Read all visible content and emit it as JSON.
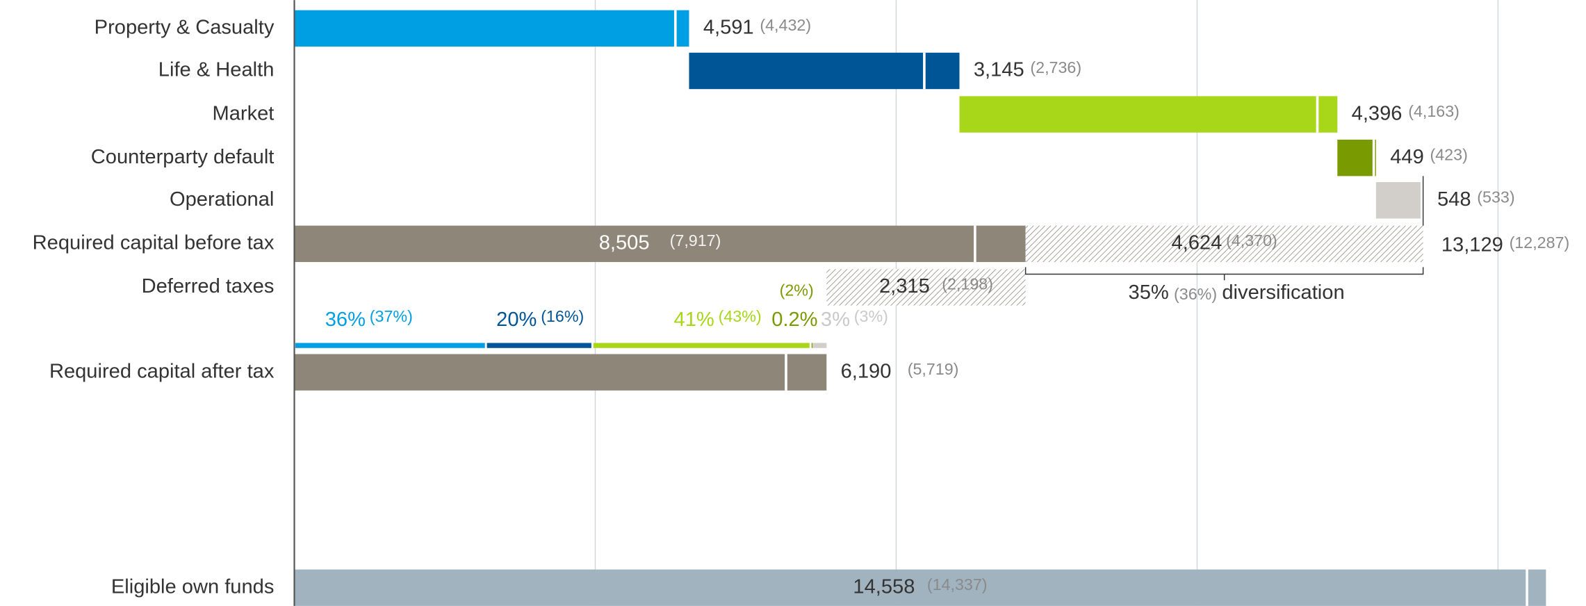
{
  "chart_data": {
    "type": "waterfall",
    "categories": [
      "Property & Casualty",
      "Life & Health",
      "Market",
      "Counterparty default",
      "Operational",
      "Required capital before tax",
      "Deferred taxes",
      "Required capital after tax",
      "Eligible own funds"
    ],
    "values": [
      4591,
      3145,
      4396,
      449,
      548,
      8505,
      2315,
      6190,
      14558
    ],
    "value_labels": [
      "4,591",
      "3,145",
      "4,396",
      "449",
      "548",
      "8,505",
      "2,315",
      "6,190",
      "14,558"
    ],
    "prior_values": [
      4432,
      2736,
      4163,
      423,
      533,
      7917,
      2198,
      5719,
      14337
    ],
    "prior_labels": [
      "(4,432)",
      "(2,736)",
      "(4,163)",
      "(423)",
      "(533)",
      "(7,917)",
      "(2,198)",
      "(5,719)",
      "(14,337)"
    ],
    "colors": [
      "#009fe3",
      "#005596",
      "#a8d619",
      "#7a9a01",
      "#d2cfcb",
      "#8f867a",
      "#8f867a",
      "#8f867a",
      "#a0b3bf"
    ],
    "diversification": {
      "value": 4624,
      "value_label": "4,624",
      "prior": 4370,
      "prior_label": "(4,370)",
      "total": 13129,
      "total_label": "13,129",
      "total_prior": 12287,
      "total_prior_label": "(12,287)",
      "share_label": "35%",
      "share_prior_label": "(36%)",
      "text": "diversification"
    },
    "shares": {
      "values": [
        36,
        20,
        41,
        0.2,
        3
      ],
      "value_labels": [
        "36%",
        "20%",
        "41%",
        "0.2%",
        "3%"
      ],
      "prior": [
        37,
        16,
        43,
        2,
        3
      ],
      "prior_labels": [
        "(37%)",
        "(16%)",
        "(43%)",
        "(2%)",
        "(3%)"
      ],
      "colors": [
        "#009fe3",
        "#005596",
        "#a8d619",
        "#7a9a01",
        "#d2cfcb"
      ]
    },
    "xlim": [
      0,
      15000
    ],
    "xticks": [
      0,
      3500,
      7000,
      10500,
      14000
    ],
    "grid": true
  }
}
